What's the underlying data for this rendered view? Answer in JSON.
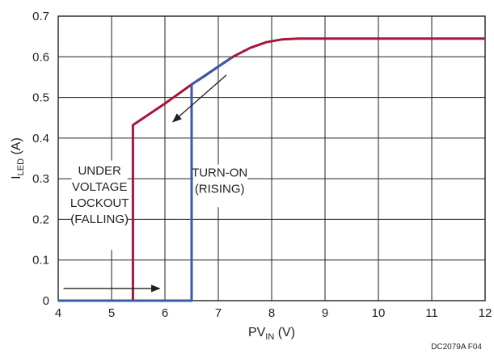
{
  "chart_data": {
    "type": "line",
    "xlabel": {
      "main": "PV",
      "sub": "IN",
      "unit": " (V)"
    },
    "ylabel": {
      "main": "I",
      "sub": "LED",
      "unit": " (A)"
    },
    "xlim": [
      4,
      12
    ],
    "ylim": [
      0,
      0.7
    ],
    "x_ticks": [
      4,
      5,
      6,
      7,
      8,
      9,
      10,
      11,
      12
    ],
    "y_ticks": [
      0,
      0.1,
      0.2,
      0.3,
      0.4,
      0.5,
      0.6,
      0.7
    ],
    "x_tick_labels": [
      "4",
      "5",
      "6",
      "7",
      "8",
      "9",
      "10",
      "11",
      "12"
    ],
    "y_tick_labels": [
      "0",
      "0.1",
      "0.2",
      "0.3",
      "0.4",
      "0.5",
      "0.6",
      "0.7"
    ],
    "grid": true,
    "series": [
      {
        "color": "#a6173a",
        "x": [
          4,
          5.4,
          5.4,
          6.0,
          6.5,
          7.0,
          7.3,
          7.6,
          7.9,
          8.2,
          8.5,
          9,
          10,
          11,
          12
        ],
        "y": [
          0,
          0,
          0.432,
          0.485,
          0.532,
          0.576,
          0.602,
          0.622,
          0.636,
          0.643,
          0.645,
          0.645,
          0.645,
          0.645,
          0.645
        ]
      },
      {
        "color": "#3a5ba7",
        "x": [
          4,
          6.5,
          6.5,
          6.75,
          7.0,
          7.25
        ],
        "y": [
          0,
          0,
          0.532,
          0.553,
          0.576,
          0.598
        ]
      }
    ],
    "annotations": [
      {
        "lines": [
          "UNDER",
          "VOLTAGE",
          "LOCKOUT",
          "(FALLING)"
        ],
        "arrow_from": [
          7.15,
          0.555
        ],
        "arrow_to": [
          6.15,
          0.44
        ]
      },
      {
        "lines": [
          "TURN-ON",
          "(RISING)"
        ]
      },
      {
        "lines": [],
        "arrow_from": [
          4.1,
          0.03
        ],
        "arrow_to": [
          5.9,
          0.03
        ]
      }
    ],
    "figure_id": "DC2079A F04"
  }
}
